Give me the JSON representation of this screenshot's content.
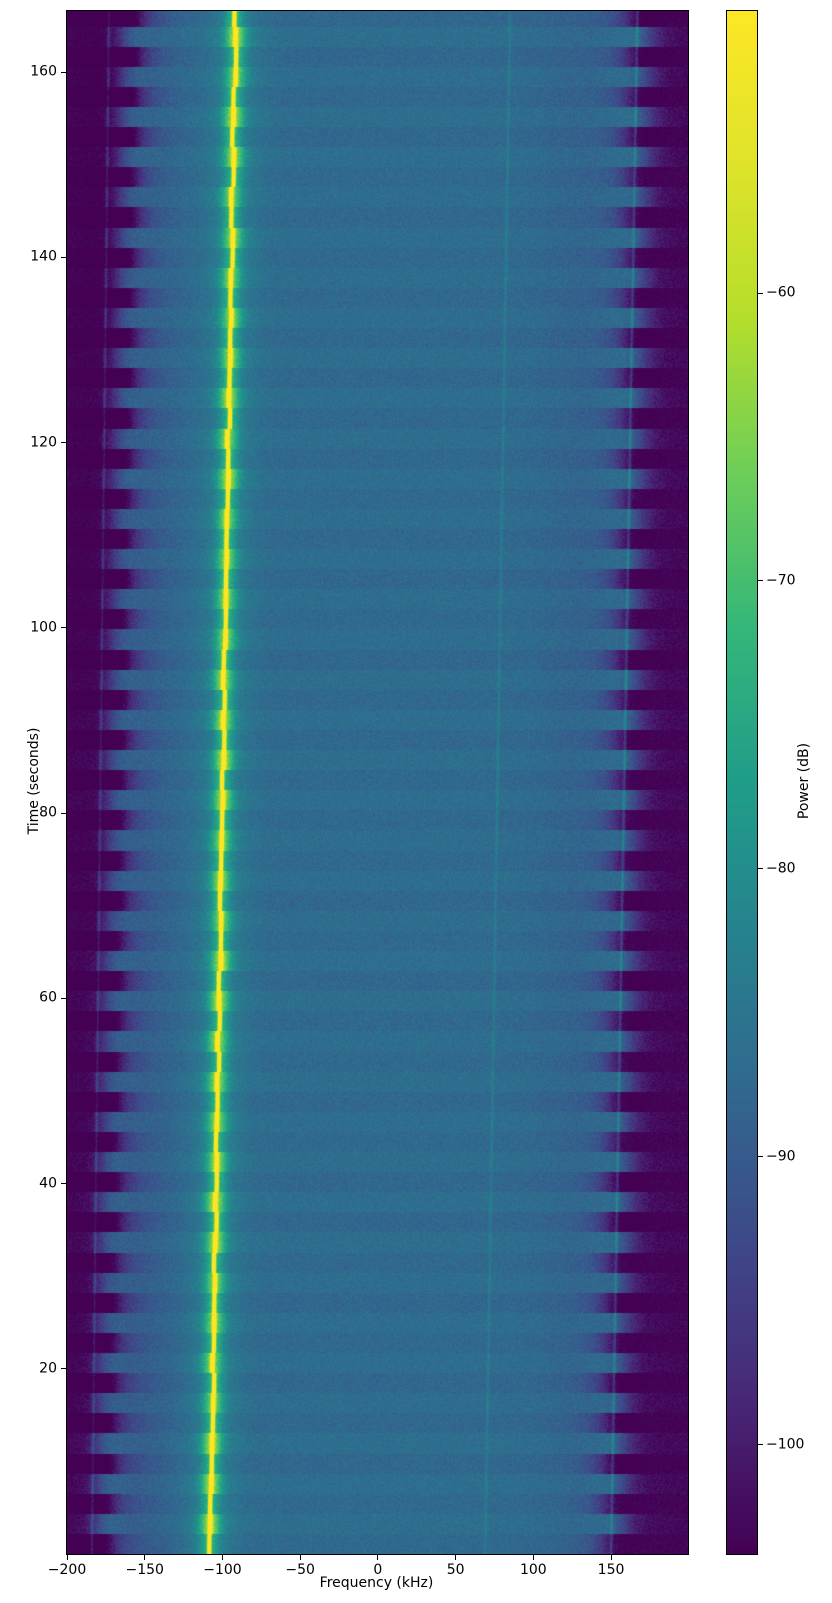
{
  "figure": {
    "background": "#ffffff"
  },
  "chart_data": {
    "type": "heatmap",
    "subtype": "spectrogram",
    "title": "",
    "xlabel": "Frequency (kHz)",
    "ylabel": "Time (seconds)",
    "colorbar_label": "Power (dB)",
    "x_range_khz": [
      -200,
      199.5
    ],
    "y_range_s": [
      0,
      166.6
    ],
    "grid": false,
    "x_ticks": [
      {
        "v": -200,
        "label": "−200"
      },
      {
        "v": -150,
        "label": "−150"
      },
      {
        "v": -100,
        "label": "−100"
      },
      {
        "v": -50,
        "label": "−50"
      },
      {
        "v": 0,
        "label": "0"
      },
      {
        "v": 50,
        "label": "50"
      },
      {
        "v": 100,
        "label": "100"
      },
      {
        "v": 150,
        "label": "150"
      }
    ],
    "y_ticks": [
      {
        "v": 20,
        "label": "20"
      },
      {
        "v": 40,
        "label": "40"
      },
      {
        "v": 60,
        "label": "60"
      },
      {
        "v": 80,
        "label": "80"
      },
      {
        "v": 100,
        "label": "100"
      },
      {
        "v": 120,
        "label": "120"
      },
      {
        "v": 140,
        "label": "140"
      },
      {
        "v": 160,
        "label": "160"
      }
    ],
    "colorbar_ticks": [
      {
        "v": -60,
        "label": "−60"
      },
      {
        "v": -70,
        "label": "−70"
      },
      {
        "v": -80,
        "label": "−80"
      },
      {
        "v": -90,
        "label": "−90"
      },
      {
        "v": -100,
        "label": "−100"
      }
    ],
    "color_scale": {
      "name": "viridis",
      "vmin_db": -103.8,
      "vmax_db": -50.2,
      "stops": [
        [
          68,
          1,
          84
        ],
        [
          72,
          40,
          120
        ],
        [
          62,
          73,
          137
        ],
        [
          49,
          104,
          142
        ],
        [
          38,
          130,
          142
        ],
        [
          31,
          158,
          137
        ],
        [
          53,
          183,
          121
        ],
        [
          110,
          206,
          88
        ],
        [
          181,
          222,
          43
        ],
        [
          223,
          227,
          42
        ],
        [
          253,
          231,
          37
        ]
      ]
    },
    "background_level_db": -86.8,
    "noise_db": 2.3,
    "interior_shading": [
      {
        "f": -163,
        "w": 30,
        "amp": 3.2
      },
      {
        "f": 130,
        "w": 28,
        "amp": 1.3
      }
    ],
    "passband": {
      "left_edge_khz_start": -177.5,
      "right_edge_khz_start": 153,
      "drift_khz": 17,
      "rolloff_w_left": 3.5,
      "rolloff_w_right": 4.5,
      "floor_drop_db": 16.5,
      "edge_scallop_khz": 6
    },
    "stripes": {
      "period_s": 2.17,
      "base_amp_db": 0.7,
      "edge_amp_db": 3.2,
      "edge_w_khz": 16,
      "carrier_amp_db": 2.0,
      "carrier_w_khz": 9,
      "bright_factor": 0.55
    },
    "carrier": {
      "f_start_khz": -108,
      "f_end_khz": -91.5,
      "jitter_khz": 1.6,
      "core_amp_db": 50,
      "core_w_khz": 1.1,
      "halo_amp_db": 11,
      "halo_w_khz": 6,
      "glow_amp_db": 5,
      "glow_w_khz": 16
    },
    "satellite_lines": [
      {
        "f_start_khz": -184,
        "f_end_khz": -173,
        "amp_db": 7,
        "w_khz": 0.9
      },
      {
        "f_start_khz": 69,
        "f_end_khz": 85,
        "amp_db": 3.5,
        "w_khz": 0.9
      },
      {
        "f_start_khz": 150,
        "f_end_khz": 167,
        "amp_db": 7,
        "w_khz": 0.9
      }
    ]
  }
}
